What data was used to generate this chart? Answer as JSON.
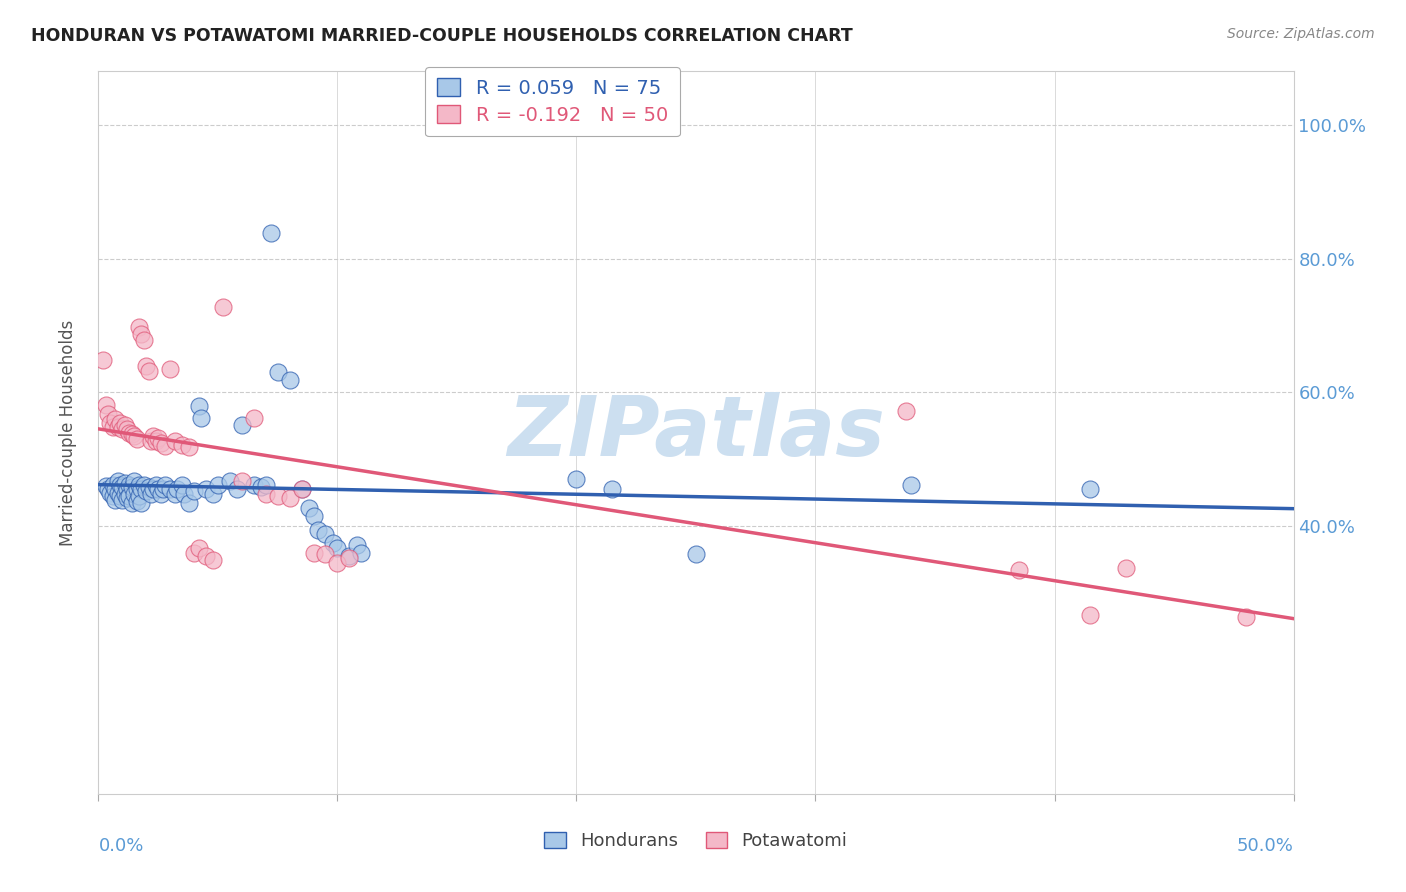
{
  "title": "HONDURAN VS POTAWATOMI MARRIED-COUPLE HOUSEHOLDS CORRELATION CHART",
  "source": "Source: ZipAtlas.com",
  "ylabel": "Married-couple Households",
  "legend_blue_r": "R = 0.059",
  "legend_blue_n": "N = 75",
  "legend_pink_r": "R = -0.192",
  "legend_pink_n": "N = 50",
  "blue_color": "#a8c8e8",
  "pink_color": "#f4b8c8",
  "blue_line_color": "#3060b0",
  "pink_line_color": "#e05878",
  "axis_label_color": "#5b9bd5",
  "watermark_color": "#ccdff0",
  "blue_scatter": [
    [
      0.003,
      0.46
    ],
    [
      0.004,
      0.455
    ],
    [
      0.005,
      0.45
    ],
    [
      0.006,
      0.462
    ],
    [
      0.006,
      0.445
    ],
    [
      0.007,
      0.455
    ],
    [
      0.007,
      0.44
    ],
    [
      0.008,
      0.468
    ],
    [
      0.008,
      0.45
    ],
    [
      0.009,
      0.462
    ],
    [
      0.009,
      0.445
    ],
    [
      0.01,
      0.458
    ],
    [
      0.01,
      0.44
    ],
    [
      0.011,
      0.465
    ],
    [
      0.011,
      0.448
    ],
    [
      0.012,
      0.455
    ],
    [
      0.012,
      0.442
    ],
    [
      0.013,
      0.462
    ],
    [
      0.013,
      0.445
    ],
    [
      0.014,
      0.458
    ],
    [
      0.014,
      0.435
    ],
    [
      0.015,
      0.468
    ],
    [
      0.015,
      0.448
    ],
    [
      0.016,
      0.455
    ],
    [
      0.016,
      0.438
    ],
    [
      0.017,
      0.462
    ],
    [
      0.017,
      0.445
    ],
    [
      0.018,
      0.455
    ],
    [
      0.018,
      0.435
    ],
    [
      0.019,
      0.462
    ],
    [
      0.02,
      0.452
    ],
    [
      0.021,
      0.458
    ],
    [
      0.022,
      0.448
    ],
    [
      0.023,
      0.455
    ],
    [
      0.024,
      0.462
    ],
    [
      0.025,
      0.455
    ],
    [
      0.026,
      0.448
    ],
    [
      0.027,
      0.455
    ],
    [
      0.028,
      0.462
    ],
    [
      0.03,
      0.455
    ],
    [
      0.032,
      0.448
    ],
    [
      0.033,
      0.455
    ],
    [
      0.035,
      0.462
    ],
    [
      0.036,
      0.448
    ],
    [
      0.038,
      0.435
    ],
    [
      0.04,
      0.452
    ],
    [
      0.042,
      0.58
    ],
    [
      0.043,
      0.562
    ],
    [
      0.045,
      0.455
    ],
    [
      0.048,
      0.448
    ],
    [
      0.05,
      0.462
    ],
    [
      0.055,
      0.468
    ],
    [
      0.058,
      0.455
    ],
    [
      0.06,
      0.552
    ],
    [
      0.065,
      0.462
    ],
    [
      0.068,
      0.458
    ],
    [
      0.07,
      0.462
    ],
    [
      0.072,
      0.838
    ],
    [
      0.075,
      0.63
    ],
    [
      0.08,
      0.618
    ],
    [
      0.085,
      0.455
    ],
    [
      0.088,
      0.428
    ],
    [
      0.09,
      0.415
    ],
    [
      0.092,
      0.395
    ],
    [
      0.095,
      0.388
    ],
    [
      0.098,
      0.375
    ],
    [
      0.1,
      0.368
    ],
    [
      0.105,
      0.355
    ],
    [
      0.108,
      0.372
    ],
    [
      0.11,
      0.36
    ],
    [
      0.2,
      0.47
    ],
    [
      0.215,
      0.455
    ],
    [
      0.25,
      0.358
    ],
    [
      0.34,
      0.462
    ],
    [
      0.415,
      0.455
    ]
  ],
  "pink_scatter": [
    [
      0.002,
      0.648
    ],
    [
      0.003,
      0.582
    ],
    [
      0.004,
      0.568
    ],
    [
      0.005,
      0.555
    ],
    [
      0.006,
      0.548
    ],
    [
      0.007,
      0.56
    ],
    [
      0.008,
      0.548
    ],
    [
      0.009,
      0.555
    ],
    [
      0.01,
      0.545
    ],
    [
      0.011,
      0.552
    ],
    [
      0.012,
      0.545
    ],
    [
      0.013,
      0.54
    ],
    [
      0.014,
      0.538
    ],
    [
      0.015,
      0.535
    ],
    [
      0.016,
      0.53
    ],
    [
      0.017,
      0.698
    ],
    [
      0.018,
      0.688
    ],
    [
      0.019,
      0.678
    ],
    [
      0.02,
      0.64
    ],
    [
      0.021,
      0.632
    ],
    [
      0.022,
      0.528
    ],
    [
      0.023,
      0.535
    ],
    [
      0.024,
      0.528
    ],
    [
      0.025,
      0.532
    ],
    [
      0.026,
      0.525
    ],
    [
      0.028,
      0.52
    ],
    [
      0.03,
      0.635
    ],
    [
      0.032,
      0.528
    ],
    [
      0.035,
      0.522
    ],
    [
      0.038,
      0.518
    ],
    [
      0.04,
      0.36
    ],
    [
      0.042,
      0.368
    ],
    [
      0.045,
      0.355
    ],
    [
      0.048,
      0.35
    ],
    [
      0.052,
      0.728
    ],
    [
      0.06,
      0.468
    ],
    [
      0.065,
      0.562
    ],
    [
      0.07,
      0.448
    ],
    [
      0.075,
      0.445
    ],
    [
      0.08,
      0.442
    ],
    [
      0.085,
      0.455
    ],
    [
      0.09,
      0.36
    ],
    [
      0.095,
      0.358
    ],
    [
      0.1,
      0.345
    ],
    [
      0.105,
      0.352
    ],
    [
      0.338,
      0.572
    ],
    [
      0.385,
      0.335
    ],
    [
      0.415,
      0.268
    ],
    [
      0.43,
      0.338
    ],
    [
      0.48,
      0.265
    ]
  ],
  "xlim": [
    0.0,
    0.5
  ],
  "ylim": [
    0.0,
    1.08
  ],
  "ytick_values": [
    0.4,
    0.6,
    0.8,
    1.0
  ],
  "ytick_labels": [
    "40.0%",
    "60.0%",
    "80.0%",
    "100.0%"
  ],
  "xtick_values": [
    0.0,
    0.1,
    0.2,
    0.3,
    0.4,
    0.5
  ],
  "background_color": "#ffffff",
  "grid_color": "#cccccc",
  "watermark": "ZIPatlas"
}
